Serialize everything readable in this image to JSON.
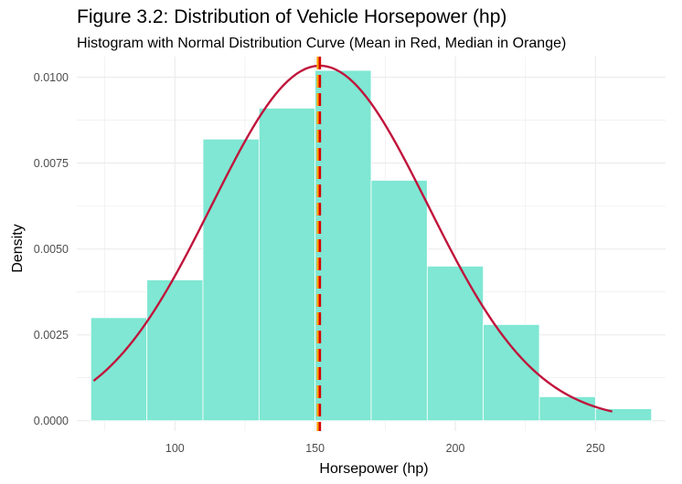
{
  "chart_data": {
    "type": "bar",
    "title": "Figure 3.2: Distribution of Vehicle Horsepower (hp)",
    "subtitle": "Histogram with Normal Distribution Curve (Mean in Red, Median in Orange)",
    "xlabel": "Horsepower (hp)",
    "ylabel": "Density",
    "xlim": [
      65,
      275
    ],
    "ylim": [
      -0.0003,
      0.0106
    ],
    "x_ticks": [
      100,
      150,
      200,
      250
    ],
    "y_ticks": [
      0.0,
      0.0025,
      0.005,
      0.0075,
      0.01
    ],
    "x_tick_labels": [
      "100",
      "150",
      "200",
      "250"
    ],
    "y_tick_labels": [
      "0.0000",
      "0.0025",
      "0.0050",
      "0.0075",
      "0.0100"
    ],
    "grid": true,
    "bins": [
      {
        "x0": 70,
        "x1": 90,
        "density": 0.003
      },
      {
        "x0": 90,
        "x1": 110,
        "density": 0.0041
      },
      {
        "x0": 110,
        "x1": 130,
        "density": 0.0082
      },
      {
        "x0": 130,
        "x1": 150,
        "density": 0.0091
      },
      {
        "x0": 150,
        "x1": 170,
        "density": 0.0102
      },
      {
        "x0": 170,
        "x1": 190,
        "density": 0.007
      },
      {
        "x0": 190,
        "x1": 210,
        "density": 0.0045
      },
      {
        "x0": 210,
        "x1": 230,
        "density": 0.0028
      },
      {
        "x0": 230,
        "x1": 250,
        "density": 0.0007
      },
      {
        "x0": 250,
        "x1": 270,
        "density": 0.00035
      }
    ],
    "normal_curve": {
      "mean": 151.7,
      "sd": 38.6,
      "x_range": [
        71,
        256
      ]
    },
    "mean": 151.7,
    "median": 151.0,
    "colors": {
      "bars": "#7fe7d3",
      "curve": "#c0143c",
      "mean_line": "#d40000",
      "median_line": "#ffa500",
      "grid": "#ebebeb",
      "tick_text": "#4d4d4d"
    }
  }
}
